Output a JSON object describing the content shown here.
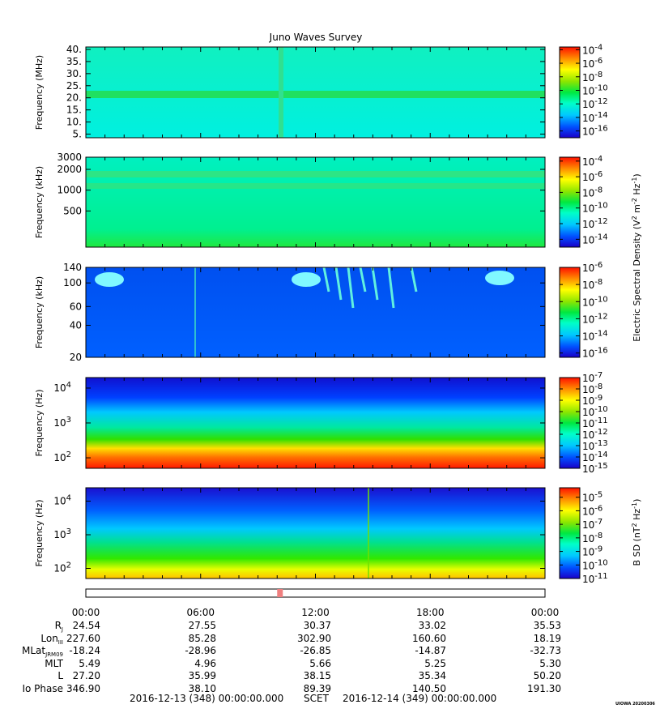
{
  "chart_data": {
    "type": "heatmap",
    "title": "Juno Waves Survey",
    "time_ticks": [
      "00:00",
      "06:00",
      "12:00",
      "18:00",
      "00:00"
    ],
    "panels": [
      {
        "ylabel": "Frequency (MHz)",
        "yscale": "linear",
        "ylim": [
          3.5,
          41
        ],
        "yticks": [
          "40.",
          "35.",
          "30.",
          "25.",
          "20.",
          "15.",
          "10.",
          "5."
        ],
        "ytick_values": [
          40,
          35,
          30,
          25,
          20,
          15,
          10,
          5
        ],
        "colorbar_ticks": [
          {
            "base": "10",
            "exp": "-4"
          },
          {
            "base": "10",
            "exp": "-6"
          },
          {
            "base": "10",
            "exp": "-8"
          },
          {
            "base": "10",
            "exp": "-10"
          },
          {
            "base": "10",
            "exp": "-12"
          },
          {
            "base": "10",
            "exp": "-14"
          },
          {
            "base": "10",
            "exp": "-16"
          }
        ],
        "colorbar_range": [
          -17,
          -3.6
        ]
      },
      {
        "ylabel": "Frequency (kHz)",
        "yscale": "log",
        "ylim": [
          150,
          3000
        ],
        "yticks": [
          "3000",
          "2000",
          "1000",
          "500"
        ],
        "ytick_values": [
          3000,
          2000,
          1000,
          500
        ],
        "colorbar_ticks": [
          {
            "base": "10",
            "exp": "-4"
          },
          {
            "base": "10",
            "exp": "-6"
          },
          {
            "base": "10",
            "exp": "-8"
          },
          {
            "base": "10",
            "exp": "-10"
          },
          {
            "base": "10",
            "exp": "-12"
          },
          {
            "base": "10",
            "exp": "-14"
          }
        ],
        "colorbar_range": [
          -15,
          -3.5
        ]
      },
      {
        "ylabel": "Frequency (kHz)",
        "yscale": "log",
        "ylim": [
          20,
          140
        ],
        "yticks": [
          "140",
          "100",
          "60",
          "40",
          "20"
        ],
        "ytick_values": [
          140,
          100,
          60,
          40,
          20
        ],
        "colorbar_ticks": [
          {
            "base": "10",
            "exp": "-6"
          },
          {
            "base": "10",
            "exp": "-8"
          },
          {
            "base": "10",
            "exp": "-10"
          },
          {
            "base": "10",
            "exp": "-12"
          },
          {
            "base": "10",
            "exp": "-14"
          },
          {
            "base": "10",
            "exp": "-16"
          }
        ],
        "colorbar_range": [
          -16.5,
          -6
        ]
      },
      {
        "ylabel": "Frequency (Hz)",
        "yscale": "log",
        "ylim": [
          50,
          20000
        ],
        "yticks": [
          {
            "base": "10",
            "exp": "4"
          },
          {
            "base": "10",
            "exp": "3"
          },
          {
            "base": "10",
            "exp": "2"
          }
        ],
        "ytick_values": [
          10000,
          1000,
          100
        ],
        "colorbar_ticks": [
          {
            "base": "10",
            "exp": "-7"
          },
          {
            "base": "10",
            "exp": "-8"
          },
          {
            "base": "10",
            "exp": "-9"
          },
          {
            "base": "10",
            "exp": "-10"
          },
          {
            "base": "10",
            "exp": "-11"
          },
          {
            "base": "10",
            "exp": "-12"
          },
          {
            "base": "10",
            "exp": "-13"
          },
          {
            "base": "10",
            "exp": "-14"
          },
          {
            "base": "10",
            "exp": "-15"
          }
        ],
        "colorbar_range": [
          -15,
          -7
        ]
      },
      {
        "ylabel": "Frequency (Hz)",
        "yscale": "log",
        "ylim": [
          50,
          25000
        ],
        "yticks": [
          {
            "base": "10",
            "exp": "4"
          },
          {
            "base": "10",
            "exp": "3"
          },
          {
            "base": "10",
            "exp": "2"
          }
        ],
        "ytick_values": [
          10000,
          1000,
          100
        ],
        "colorbar_ticks": [
          {
            "base": "10",
            "exp": "-5"
          },
          {
            "base": "10",
            "exp": "-6"
          },
          {
            "base": "10",
            "exp": "-7"
          },
          {
            "base": "10",
            "exp": "-8"
          },
          {
            "base": "10",
            "exp": "-9"
          },
          {
            "base": "10",
            "exp": "-10"
          },
          {
            "base": "10",
            "exp": "-11"
          }
        ],
        "colorbar_range": [
          -11,
          -4.3
        ]
      }
    ],
    "colorbar_label_esd": "Electric Spectral Density (V",
    "colorbar_label_esd_parts": [
      "Electric Spectral Density (V",
      "2",
      " m",
      "-2",
      " Hz",
      "-1",
      ")"
    ],
    "colorbar_label_bsd_parts": [
      "B SD (nT",
      "2",
      " Hz",
      "-1",
      ")"
    ],
    "ephemeris": {
      "rows": [
        {
          "label": "R",
          "sub": "J",
          "values": [
            "24.54",
            "27.55",
            "30.37",
            "33.02",
            "35.53"
          ]
        },
        {
          "label": "Lon",
          "sub": "III",
          "values": [
            "227.60",
            "85.28",
            "302.90",
            "160.60",
            "18.19"
          ]
        },
        {
          "label": "MLat",
          "sub": "JRM09",
          "values": [
            "-18.24",
            "-28.96",
            "-26.85",
            "-14.87",
            "-32.73"
          ]
        },
        {
          "label": "MLT",
          "sub": "",
          "values": [
            "5.49",
            "4.96",
            "5.66",
            "5.25",
            "5.30"
          ]
        },
        {
          "label": "L",
          "sub": "",
          "values": [
            "27.20",
            "35.99",
            "38.15",
            "35.34",
            "50.20"
          ]
        },
        {
          "label": "Io Phase",
          "sub": "",
          "values": [
            "346.90",
            "38.10",
            "89.39",
            "140.50",
            "191.30"
          ]
        }
      ]
    },
    "footer": {
      "start": "2016-12-13 (348) 00:00:00.000",
      "scet": "SCET",
      "end": "2016-12-14 (349) 00:00:00.000"
    },
    "stamp": "UIOWA 20200306",
    "marker_time_hours": 10.0
  }
}
